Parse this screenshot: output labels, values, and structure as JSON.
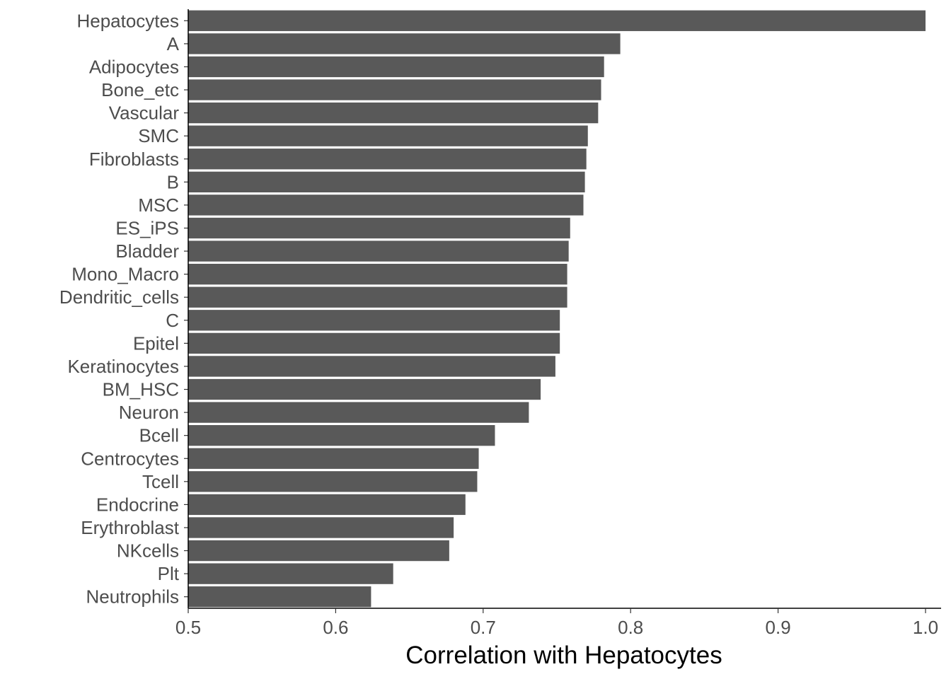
{
  "chart_data": {
    "type": "bar",
    "orientation": "horizontal",
    "categories": [
      "Hepatocytes",
      "A",
      "Adipocytes",
      "Bone_etc",
      "Vascular",
      "SMC",
      "Fibroblasts",
      "B",
      "MSC",
      "ES_iPS",
      "Bladder",
      "Mono_Macro",
      "Dendritic_cells",
      "C",
      "Epitel",
      "Keratinocytes",
      "BM_HSC",
      "Neuron",
      "Bcell",
      "Centrocytes",
      "Tcell",
      "Endocrine",
      "Erythroblast",
      "NKcells",
      "Plt",
      "Neutrophils"
    ],
    "values": [
      1.0,
      0.793,
      0.782,
      0.78,
      0.778,
      0.771,
      0.77,
      0.769,
      0.768,
      0.759,
      0.758,
      0.757,
      0.757,
      0.752,
      0.752,
      0.749,
      0.739,
      0.731,
      0.708,
      0.697,
      0.696,
      0.688,
      0.68,
      0.677,
      0.639,
      0.624
    ],
    "xlabel": "Correlation with Hepatocytes",
    "ylabel": "",
    "title": "",
    "xlim": [
      0.5,
      1.0
    ],
    "xticks": [
      "0.5",
      "0.6",
      "0.7",
      "0.8",
      "0.9",
      "1.0"
    ],
    "bar_color": "#595959",
    "grid": false,
    "legend": "none"
  }
}
